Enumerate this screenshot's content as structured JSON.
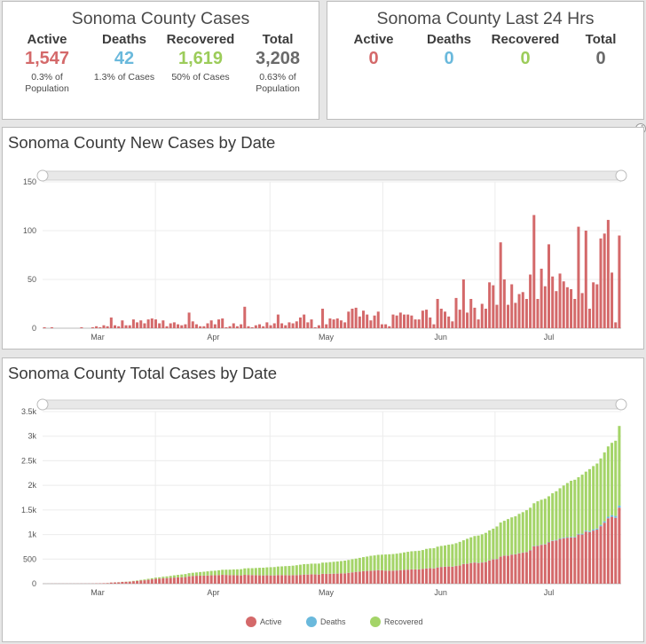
{
  "cards": [
    {
      "title": "Sonoma County Cases",
      "stats": [
        {
          "label": "Active",
          "value": "1,547",
          "sub1": "0.3% of",
          "sub2": "Population",
          "color": "#d4696a"
        },
        {
          "label": "Deaths",
          "value": "42",
          "sub1": "1.3% of Cases",
          "sub2": "",
          "color": "#6ab9dc"
        },
        {
          "label": "Recovered",
          "value": "1,619",
          "sub1": "50% of Cases",
          "sub2": "",
          "color": "#9ccc5a"
        },
        {
          "label": "Total",
          "value": "3,208",
          "sub1": "0.63% of",
          "sub2": "Population",
          "color": "#6a6a6a"
        }
      ]
    },
    {
      "title": "Sonoma County Last 24 Hrs",
      "stats": [
        {
          "label": "Active",
          "value": "0",
          "color": "#d4696a"
        },
        {
          "label": "Deaths",
          "value": "0",
          "color": "#6ab9dc"
        },
        {
          "label": "Recovered",
          "value": "0",
          "color": "#9ccc5a"
        },
        {
          "label": "Total",
          "value": "0",
          "color": "#6a6a6a"
        }
      ]
    }
  ],
  "colors": {
    "active": "#d4696a",
    "deaths": "#6ab9dc",
    "recovered": "#a4d468"
  },
  "chart_data": [
    {
      "type": "bar",
      "title": "Sonoma County New Cases by Date",
      "x_tick_labels": [
        "Mar",
        "Apr",
        "May",
        "Jun",
        "Jul"
      ],
      "y_ticks": [
        "0",
        "50",
        "100",
        "150"
      ],
      "ylim": [
        0,
        150
      ],
      "series": [
        {
          "name": "New Cases",
          "values": [
            1,
            0,
            1,
            0,
            0,
            0,
            0,
            0,
            0,
            0,
            1,
            0,
            0,
            1,
            2,
            1,
            3,
            2,
            11,
            3,
            2,
            8,
            3,
            3,
            9,
            6,
            8,
            5,
            9,
            10,
            9,
            5,
            8,
            2,
            5,
            6,
            4,
            3,
            4,
            16,
            7,
            4,
            2,
            2,
            5,
            8,
            4,
            9,
            10,
            1,
            2,
            5,
            2,
            4,
            22,
            2,
            1,
            3,
            4,
            2,
            6,
            3,
            5,
            14,
            5,
            3,
            6,
            5,
            7,
            11,
            14,
            6,
            9,
            1,
            3,
            20,
            4,
            10,
            9,
            10,
            8,
            6,
            17,
            20,
            21,
            12,
            18,
            14,
            8,
            13,
            17,
            4,
            4,
            2,
            14,
            13,
            16,
            14,
            14,
            13,
            9,
            9,
            18,
            19,
            11,
            4,
            30,
            20,
            17,
            12,
            7,
            31,
            19,
            50,
            16,
            30,
            21,
            9,
            25,
            20,
            47,
            44,
            24,
            88,
            50,
            24,
            45,
            26,
            35,
            37,
            30,
            55,
            116,
            30,
            61,
            43,
            86,
            53,
            38,
            56,
            48,
            42,
            40,
            30,
            104,
            36,
            100,
            20,
            47,
            45,
            92,
            97,
            111,
            57,
            6,
            95
          ]
        }
      ],
      "xlabel": "",
      "ylabel": ""
    },
    {
      "type": "bar",
      "stacked": true,
      "title": "Sonoma County Total Cases by Date",
      "x_tick_labels": [
        "Mar",
        "Apr",
        "May",
        "Jun",
        "Jul"
      ],
      "y_ticks": [
        "0",
        "500",
        "1k",
        "1.5k",
        "2k",
        "2.5k",
        "3k",
        "3.5k"
      ],
      "ylim": [
        0,
        3500
      ],
      "series": [
        {
          "name": "Active",
          "values": [
            1,
            1,
            2,
            2,
            2,
            2,
            2,
            2,
            2,
            2,
            3,
            3,
            3,
            4,
            6,
            7,
            10,
            12,
            23,
            26,
            28,
            36,
            39,
            42,
            51,
            57,
            65,
            70,
            79,
            89,
            98,
            103,
            111,
            113,
            118,
            124,
            128,
            130,
            134,
            150,
            157,
            161,
            163,
            164,
            165,
            170,
            172,
            175,
            180,
            178,
            175,
            173,
            170,
            168,
            180,
            178,
            175,
            172,
            170,
            168,
            170,
            168,
            168,
            175,
            173,
            172,
            170,
            172,
            174,
            178,
            185,
            185,
            190,
            188,
            185,
            200,
            198,
            200,
            203,
            205,
            208,
            210,
            220,
            230,
            240,
            245,
            255,
            260,
            262,
            268,
            275,
            270,
            265,
            262,
            265,
            268,
            275,
            280,
            285,
            290,
            290,
            290,
            300,
            310,
            315,
            310,
            330,
            340,
            345,
            350,
            345,
            360,
            370,
            400,
            405,
            420,
            430,
            420,
            430,
            440,
            470,
            495,
            500,
            550,
            570,
            570,
            590,
            595,
            615,
            630,
            640,
            680,
            760,
            770,
            790,
            800,
            840,
            870,
            880,
            910,
            925,
            935,
            940,
            940,
            1000,
            1000,
            1060,
            1050,
            1080,
            1100,
            1170,
            1240,
            1330,
            1360,
            1340,
            1547
          ]
        },
        {
          "name": "Deaths",
          "values": [
            0,
            0,
            0,
            0,
            0,
            0,
            0,
            0,
            0,
            0,
            0,
            0,
            0,
            0,
            0,
            0,
            0,
            0,
            0,
            0,
            0,
            0,
            0,
            0,
            0,
            0,
            0,
            0,
            1,
            1,
            1,
            1,
            1,
            1,
            1,
            1,
            1,
            1,
            1,
            1,
            1,
            1,
            1,
            1,
            1,
            1,
            1,
            1,
            1,
            1,
            1,
            1,
            1,
            1,
            1,
            2,
            2,
            2,
            2,
            2,
            2,
            2,
            2,
            2,
            2,
            2,
            2,
            2,
            2,
            2,
            2,
            2,
            2,
            2,
            2,
            2,
            2,
            2,
            2,
            2,
            2,
            2,
            2,
            2,
            2,
            2,
            2,
            2,
            2,
            2,
            2,
            2,
            2,
            2,
            2,
            2,
            2,
            2,
            2,
            2,
            2,
            2,
            2,
            3,
            3,
            3,
            3,
            3,
            3,
            3,
            3,
            3,
            3,
            3,
            3,
            3,
            4,
            4,
            4,
            4,
            4,
            4,
            4,
            4,
            4,
            4,
            4,
            5,
            5,
            5,
            5,
            5,
            6,
            6,
            7,
            7,
            8,
            9,
            10,
            11,
            12,
            12,
            13,
            14,
            16,
            17,
            19,
            20,
            22,
            24,
            27,
            29,
            32,
            35,
            38,
            42
          ]
        },
        {
          "name": "Recovered",
          "values": [
            0,
            0,
            0,
            0,
            0,
            0,
            0,
            0,
            0,
            0,
            0,
            0,
            0,
            0,
            0,
            0,
            0,
            1,
            1,
            1,
            2,
            2,
            3,
            5,
            6,
            9,
            12,
            15,
            19,
            21,
            24,
            26,
            30,
            34,
            39,
            45,
            50,
            56,
            61,
            63,
            64,
            67,
            73,
            78,
            85,
            89,
            91,
            97,
            102,
            106,
            110,
            116,
            121,
            126,
            130,
            135,
            138,
            145,
            151,
            155,
            160,
            165,
            168,
            172,
            177,
            183,
            188,
            192,
            199,
            206,
            210,
            213,
            215,
            218,
            222,
            226,
            230,
            236,
            240,
            245,
            250,
            257,
            260,
            265,
            268,
            278,
            283,
            290,
            303,
            305,
            310,
            318,
            327,
            334,
            336,
            341,
            345,
            354,
            361,
            367,
            372,
            378,
            382,
            395,
            400,
            410,
            420,
            425,
            430,
            440,
            455,
            460,
            478,
            480,
            505,
            520,
            535,
            555,
            570,
            590,
            610,
            620,
            660,
            690,
            705,
            740,
            755,
            770,
            800,
            820,
            850,
            860,
            870,
            900,
            910,
            920,
            930,
            960,
            990,
            1020,
            1060,
            1100,
            1140,
            1160,
            1150,
            1200,
            1200,
            1260,
            1290,
            1320,
            1350,
            1400,
            1430,
            1470,
            1530,
            1619
          ]
        }
      ],
      "xlabel": "",
      "ylabel": ""
    }
  ],
  "legend": {
    "active": "Active",
    "deaths": "Deaths",
    "recovered": "Recovered"
  }
}
